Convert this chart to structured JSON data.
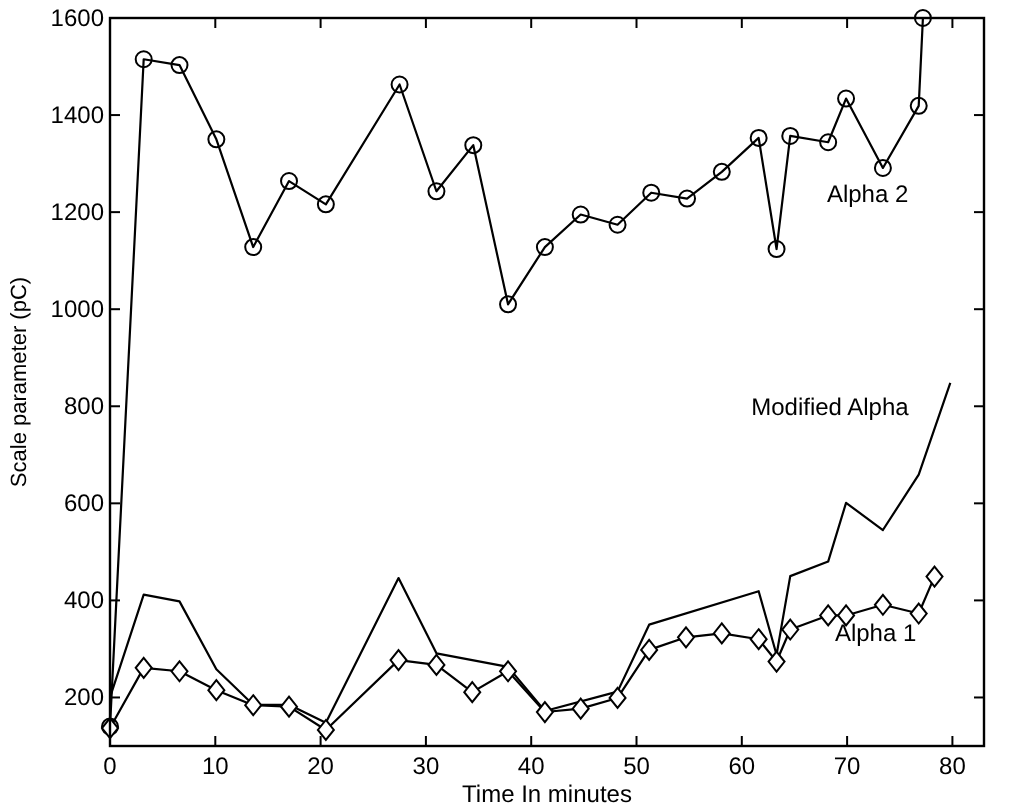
{
  "chart_data": {
    "type": "line",
    "xlabel": "Time In minutes",
    "ylabel": "Scale parameter (pC)",
    "xlim": [
      0,
      83
    ],
    "ylim": [
      100,
      1600
    ],
    "xticks": [
      0,
      10,
      20,
      30,
      40,
      50,
      60,
      70,
      80
    ],
    "yticks": [
      200,
      400,
      600,
      800,
      1000,
      1200,
      1400,
      1600
    ],
    "grid": false,
    "series": [
      {
        "name": "Alpha 2",
        "color": "#000000",
        "marker": "circle",
        "x": [
          0,
          3.2,
          6.6,
          10.1,
          13.6,
          17,
          20.5,
          27.5,
          31,
          34.5,
          37.8,
          41.3,
          44.7,
          48.2,
          51.4,
          54.8,
          58.1,
          61.6,
          63.3,
          64.6,
          68.2,
          69.9,
          73.4,
          76.8,
          77.2
        ],
        "values": [
          140,
          1515,
          1503,
          1350,
          1128,
          1264,
          1216,
          1463,
          1243,
          1338,
          1010,
          1128,
          1195,
          1174,
          1240,
          1228,
          1283,
          1353,
          1124,
          1357,
          1344,
          1434,
          1291,
          1419,
          1600
        ]
      },
      {
        "name": "Modified Alpha",
        "color": "#000000",
        "marker": "none",
        "x": [
          0,
          3.2,
          6.6,
          10.1,
          13.6,
          17,
          20.5,
          27.4,
          31,
          37.8,
          41.3,
          48.2,
          51.2,
          61.6,
          63.3,
          64.6,
          68.2,
          69.9,
          73.4,
          76.8,
          79.8
        ],
        "values": [
          200,
          412,
          398,
          258,
          185,
          185,
          148,
          446,
          291,
          263,
          172,
          212,
          350,
          419,
          288,
          450,
          480,
          601,
          545,
          659,
          848
        ]
      },
      {
        "name": "Alpha 1",
        "color": "#000000",
        "marker": "diamond",
        "x": [
          0,
          3.2,
          6.6,
          10.1,
          13.6,
          17,
          20.5,
          27.4,
          31,
          34.4,
          37.8,
          41.3,
          44.7,
          48.2,
          51.2,
          54.7,
          58.1,
          61.6,
          63.3,
          64.6,
          68.2,
          69.9,
          73.4,
          76.8,
          78.3
        ],
        "values": [
          137,
          261,
          254,
          215,
          184,
          181,
          133,
          277,
          267,
          211,
          254,
          170,
          177,
          199,
          298,
          324,
          332,
          320,
          274,
          340,
          369,
          369,
          391,
          373,
          449
        ]
      }
    ]
  }
}
